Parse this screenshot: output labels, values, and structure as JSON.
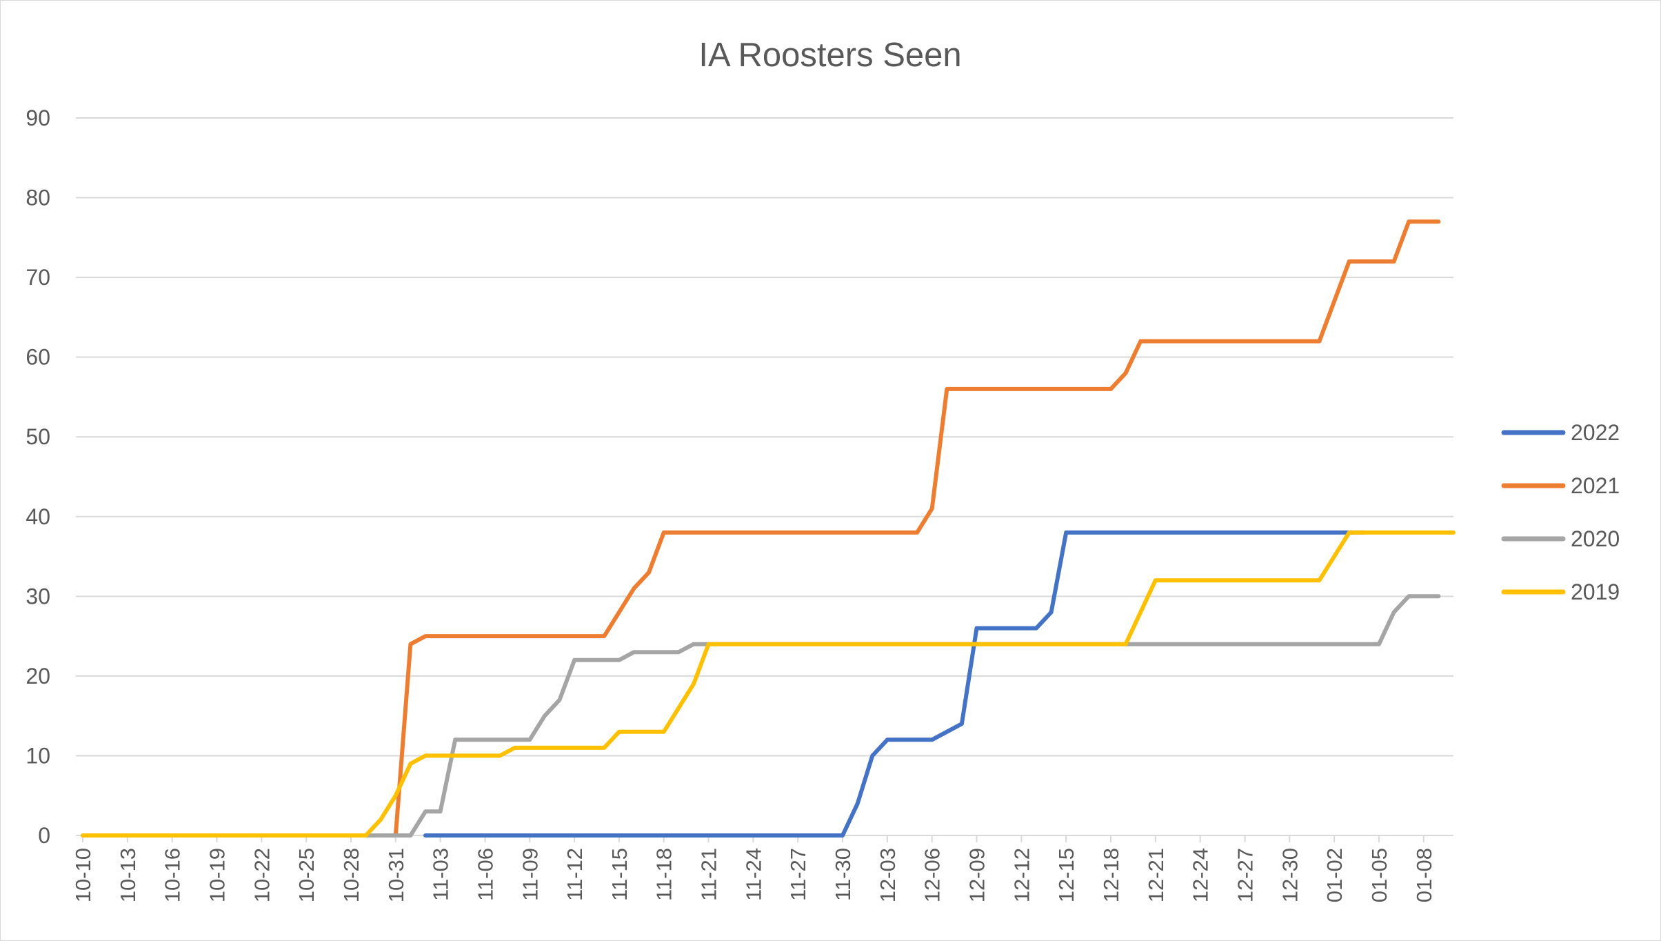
{
  "chart_data": {
    "type": "line",
    "title": "IA Roosters Seen",
    "xlabel": "",
    "ylabel": "",
    "ylim": [
      0,
      90
    ],
    "yticks": [
      0,
      10,
      20,
      30,
      40,
      50,
      60,
      70,
      80,
      90
    ],
    "x_range": [
      "10-10",
      "01-10"
    ],
    "xticks": [
      "10-10",
      "10-13",
      "10-16",
      "10-19",
      "10-22",
      "10-25",
      "10-28",
      "10-31",
      "11-03",
      "11-06",
      "11-09",
      "11-12",
      "11-15",
      "11-18",
      "11-21",
      "11-24",
      "11-27",
      "11-30",
      "12-03",
      "12-06",
      "12-09",
      "12-12",
      "12-15",
      "12-18",
      "12-21",
      "12-24",
      "12-27",
      "12-30",
      "01-02",
      "01-05",
      "01-08"
    ],
    "grid": "horizontal",
    "legend_position": "right",
    "series": [
      {
        "name": "2022",
        "color": "#4472c4",
        "points": [
          [
            "11-02",
            0
          ],
          [
            "11-30",
            0
          ],
          [
            "12-01",
            4
          ],
          [
            "12-02",
            10
          ],
          [
            "12-03",
            12
          ],
          [
            "12-06",
            12
          ],
          [
            "12-08",
            14
          ],
          [
            "12-09",
            26
          ],
          [
            "12-13",
            26
          ],
          [
            "12-14",
            28
          ],
          [
            "12-15",
            38
          ],
          [
            "01-04",
            38
          ]
        ]
      },
      {
        "name": "2021",
        "color": "#ed7d31",
        "points": [
          [
            "10-31",
            0
          ],
          [
            "11-01",
            24
          ],
          [
            "11-02",
            25
          ],
          [
            "11-14",
            25
          ],
          [
            "11-15",
            28
          ],
          [
            "11-16",
            31
          ],
          [
            "11-17",
            33
          ],
          [
            "11-18",
            38
          ],
          [
            "12-05",
            38
          ],
          [
            "12-06",
            41
          ],
          [
            "12-07",
            56
          ],
          [
            "12-18",
            56
          ],
          [
            "12-19",
            58
          ],
          [
            "12-20",
            62
          ],
          [
            "01-01",
            62
          ],
          [
            "01-03",
            72
          ],
          [
            "01-06",
            72
          ],
          [
            "01-07",
            77
          ],
          [
            "01-09",
            77
          ]
        ]
      },
      {
        "name": "2020",
        "color": "#a5a5a5",
        "points": [
          [
            "10-10",
            0
          ],
          [
            "11-01",
            0
          ],
          [
            "11-02",
            3
          ],
          [
            "11-03",
            3
          ],
          [
            "11-04",
            12
          ],
          [
            "11-09",
            12
          ],
          [
            "11-10",
            15
          ],
          [
            "11-11",
            17
          ],
          [
            "11-12",
            22
          ],
          [
            "11-15",
            22
          ],
          [
            "11-16",
            23
          ],
          [
            "11-19",
            23
          ],
          [
            "11-20",
            24
          ],
          [
            "01-05",
            24
          ],
          [
            "01-06",
            28
          ],
          [
            "01-07",
            30
          ],
          [
            "01-09",
            30
          ]
        ]
      },
      {
        "name": "2019",
        "color": "#ffc000",
        "points": [
          [
            "10-10",
            0
          ],
          [
            "10-29",
            0
          ],
          [
            "10-30",
            2
          ],
          [
            "10-31",
            5
          ],
          [
            "11-01",
            9
          ],
          [
            "11-02",
            10
          ],
          [
            "11-07",
            10
          ],
          [
            "11-08",
            11
          ],
          [
            "11-14",
            11
          ],
          [
            "11-15",
            13
          ],
          [
            "11-18",
            13
          ],
          [
            "11-20",
            19
          ],
          [
            "11-21",
            24
          ],
          [
            "12-19",
            24
          ],
          [
            "12-21",
            32
          ],
          [
            "01-01",
            32
          ],
          [
            "01-03",
            38
          ],
          [
            "01-10",
            38
          ]
        ]
      }
    ]
  }
}
